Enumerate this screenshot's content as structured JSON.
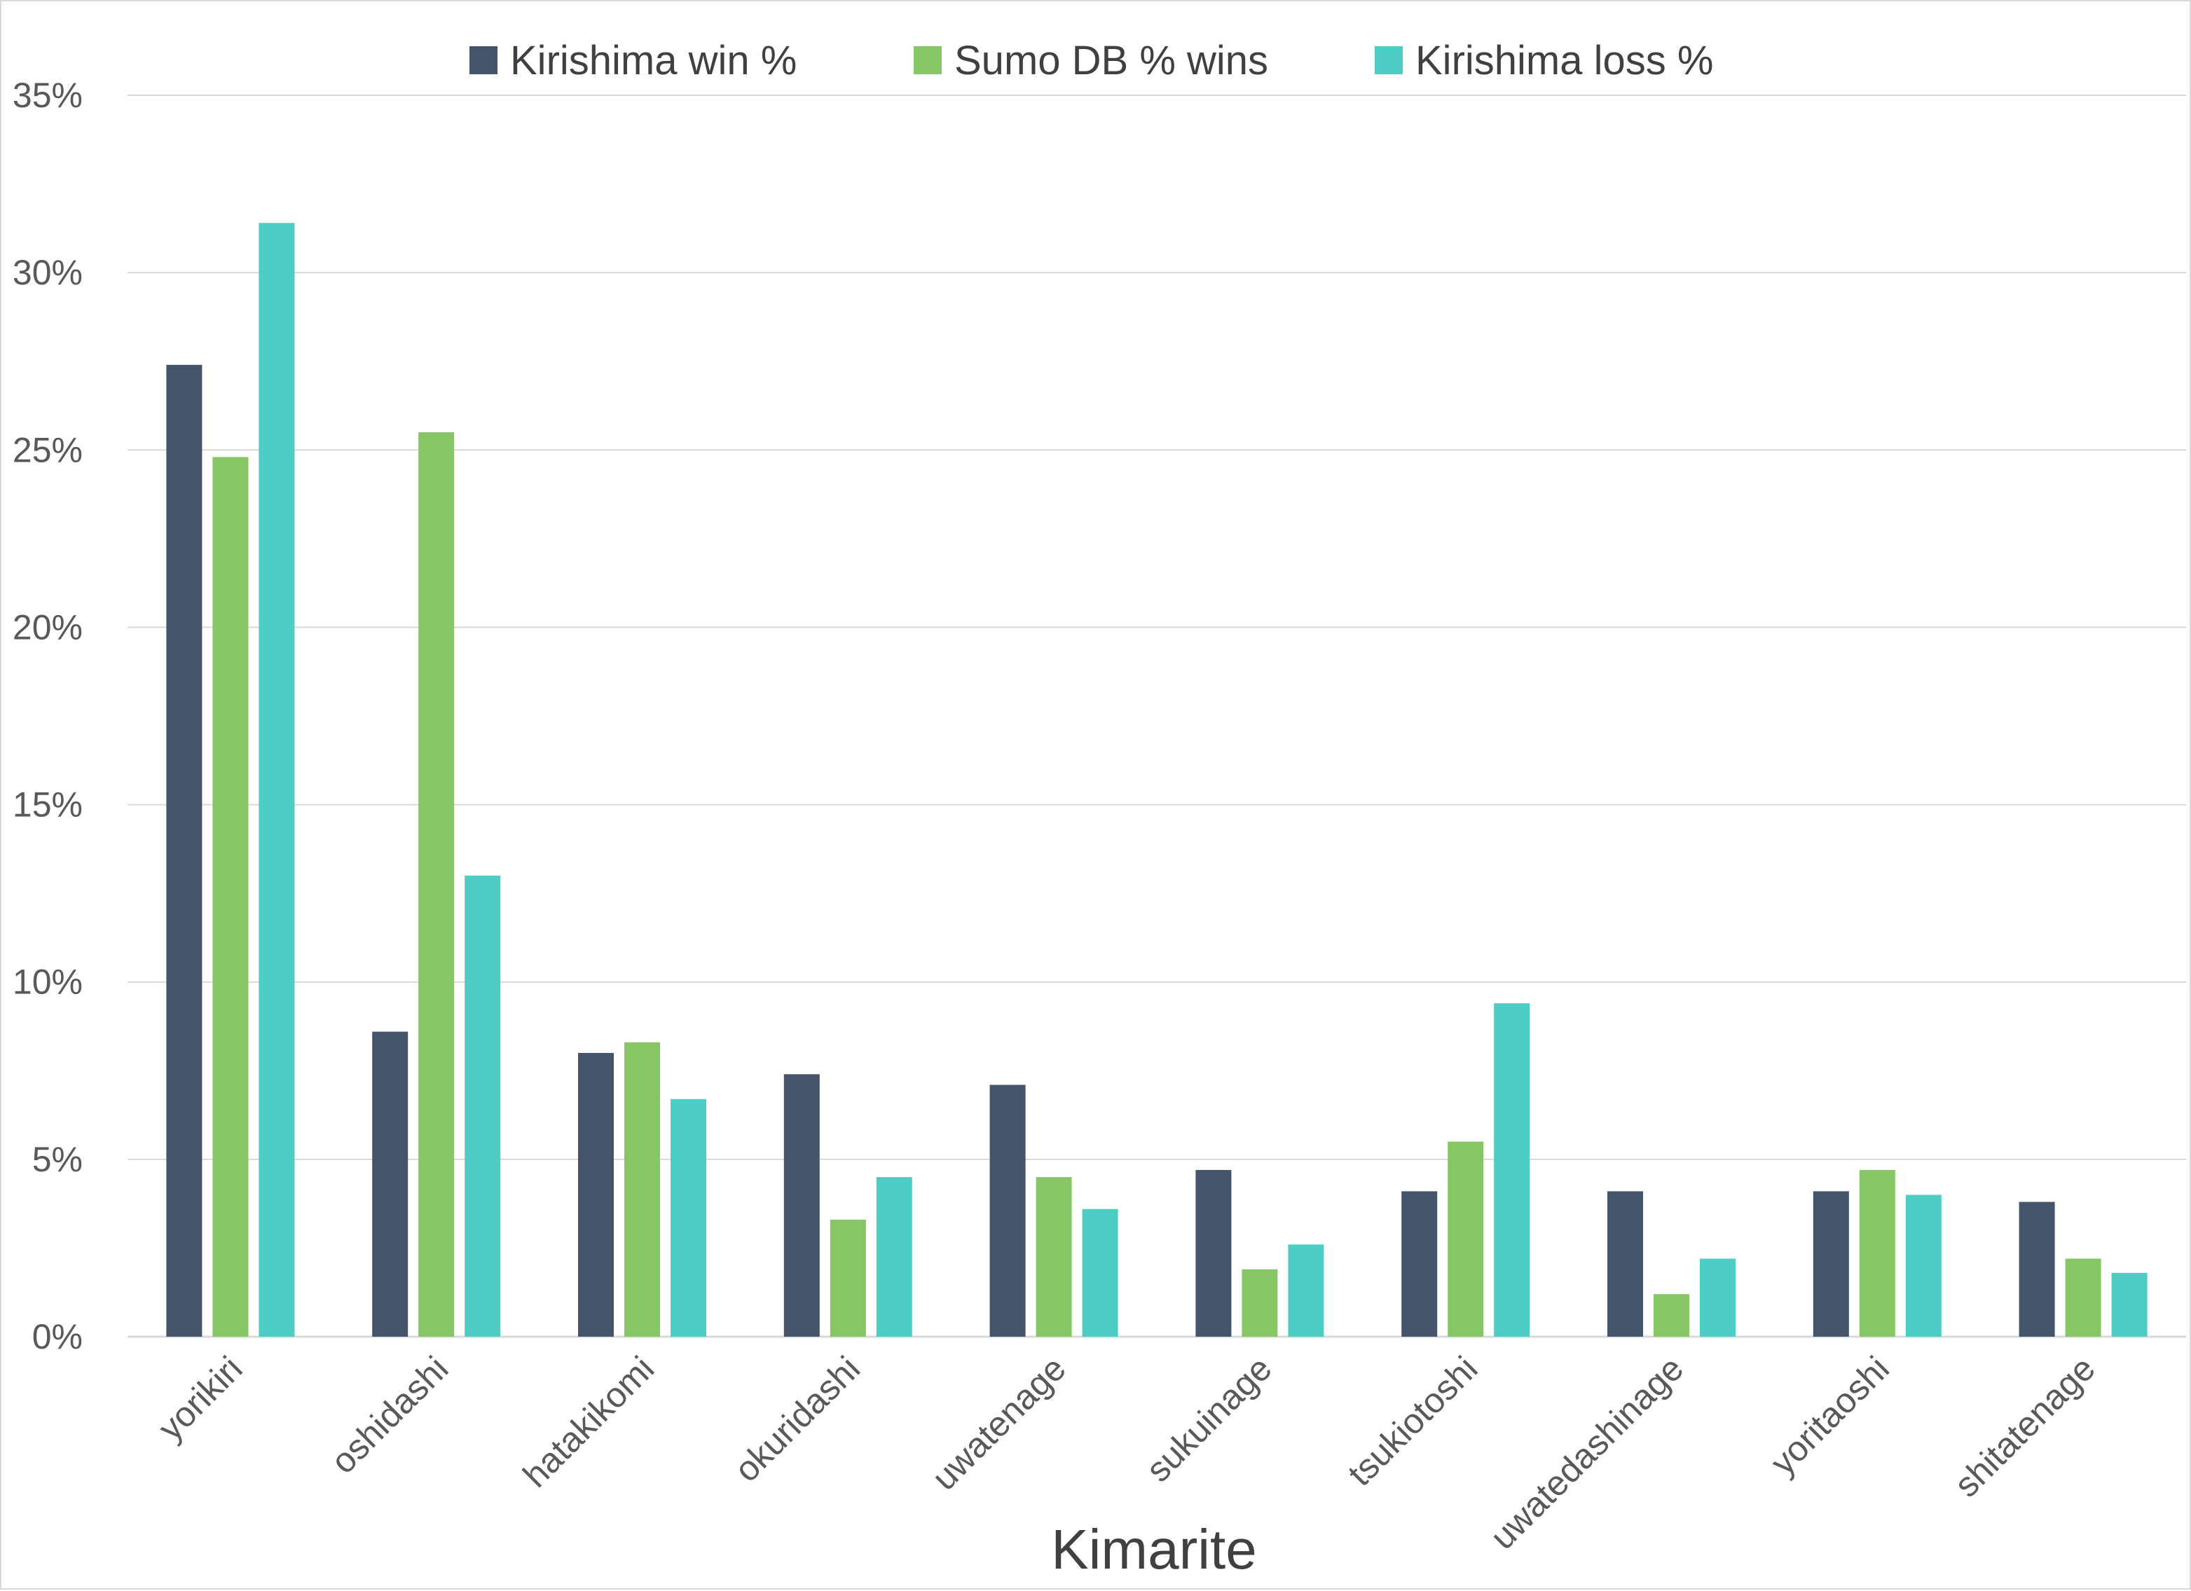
{
  "chart_data": {
    "type": "bar",
    "title": "",
    "xlabel": "Kimarite",
    "ylabel": "",
    "ylim": [
      0,
      35
    ],
    "y_ticks": [
      "0%",
      "5%",
      "10%",
      "15%",
      "20%",
      "25%",
      "30%",
      "35%"
    ],
    "grid": true,
    "legend_position": "top",
    "categories": [
      "yorikiri",
      "oshidashi",
      "hatakikomi",
      "okuridashi",
      "uwatenage",
      "sukuinage",
      "tsukiotoshi",
      "uwatedashinage",
      "yoritaoshi",
      "shitatenage"
    ],
    "series": [
      {
        "name": "Kirishima win %",
        "color": "#44546a",
        "values": [
          27.4,
          8.6,
          8.0,
          7.4,
          7.1,
          4.7,
          4.1,
          4.1,
          4.1,
          3.8
        ]
      },
      {
        "name": "Sumo DB % wins",
        "color": "#86c664",
        "values": [
          24.8,
          25.5,
          8.3,
          3.3,
          4.5,
          1.9,
          5.5,
          1.2,
          4.7,
          2.2
        ]
      },
      {
        "name": "Kirishima loss %",
        "color": "#4ecdc4",
        "values": [
          31.4,
          13.0,
          6.7,
          4.5,
          3.6,
          2.6,
          9.4,
          2.2,
          4.0,
          1.8
        ]
      }
    ]
  }
}
